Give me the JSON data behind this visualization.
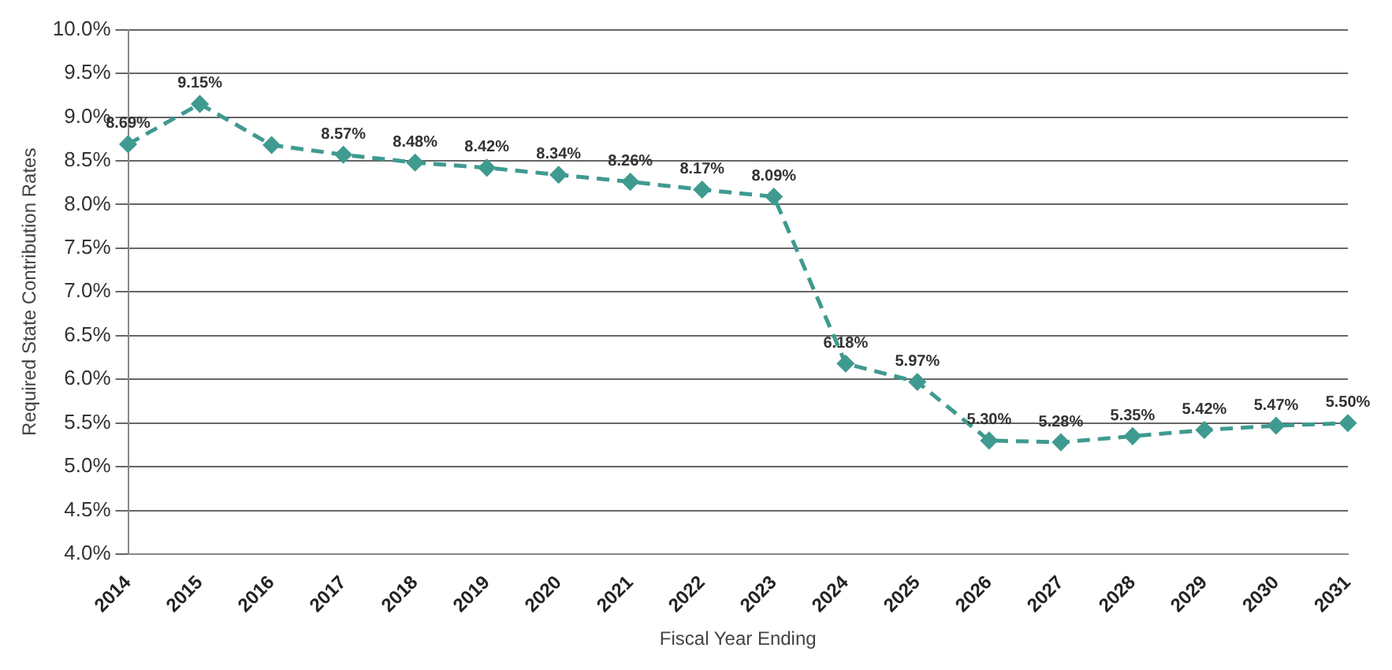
{
  "chart_data": {
    "type": "line",
    "xlabel": "Fiscal Year Ending",
    "ylabel": "Required State Contribution Rates",
    "categories": [
      "2014",
      "2015",
      "2016",
      "2017",
      "2018",
      "2019",
      "2020",
      "2021",
      "2022",
      "2023",
      "2024",
      "2025",
      "2026",
      "2027",
      "2028",
      "2029",
      "2030",
      "2031"
    ],
    "series": [
      {
        "color": "#3f9a90",
        "values": [
          8.69,
          9.15,
          8.68,
          8.57,
          8.48,
          8.42,
          8.34,
          8.26,
          8.17,
          8.09,
          6.18,
          5.97,
          5.3,
          5.28,
          5.35,
          5.42,
          5.47,
          5.5
        ],
        "value_labels": [
          "8.69%",
          "9.15%",
          null,
          "8.57%",
          "8.48%",
          "8.42%",
          "8.34%",
          "8.26%",
          "8.17%",
          "8.09%",
          "6.18%",
          "5.97%",
          "5.30%",
          "5.28%",
          "5.35%",
          "5.42%",
          "5.47%",
          "5.50%"
        ]
      }
    ],
    "ylim": [
      4,
      10
    ],
    "yticks": [
      {
        "value": 4,
        "label": "4.0%"
      },
      {
        "value": 4.5,
        "label": "4.5%"
      },
      {
        "value": 5,
        "label": "5.0%"
      },
      {
        "value": 5.5,
        "label": "5.5%"
      },
      {
        "value": 6,
        "label": "6.0%"
      },
      {
        "value": 6.5,
        "label": "6.5%"
      },
      {
        "value": 7,
        "label": "7.0%"
      },
      {
        "value": 7.5,
        "label": "7.5%"
      },
      {
        "value": 8,
        "label": "8.0%"
      },
      {
        "value": 8.5,
        "label": "8.5%"
      },
      {
        "value": 9,
        "label": "9.0%"
      },
      {
        "value": 9.5,
        "label": "9.5%"
      },
      {
        "value": 10,
        "label": "10.0%"
      }
    ],
    "grid": "y",
    "legend": false,
    "marker": "diamond",
    "line_style": "dashed"
  }
}
